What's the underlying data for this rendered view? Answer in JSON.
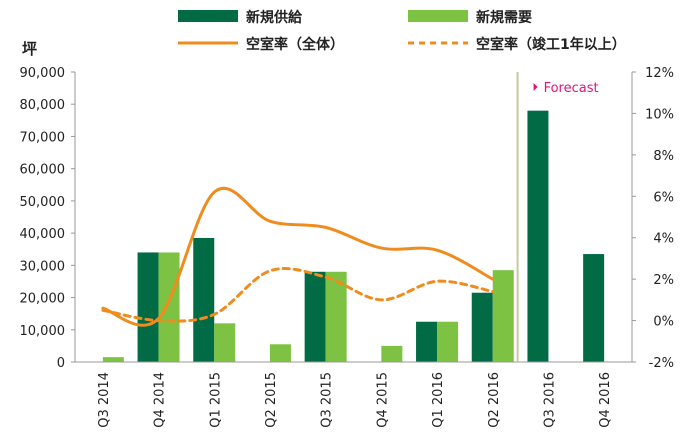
{
  "chart_data": {
    "type": "bar",
    "categories": [
      "Q3 2014",
      "Q4 2014",
      "Q1 2015",
      "Q2 2015",
      "Q3 2015",
      "Q4 2015",
      "Q1 2016",
      "Q2 2016",
      "Q3 2016",
      "Q4 2016"
    ],
    "series": [
      {
        "name": "新規供給",
        "kind": "bar",
        "axis": "left",
        "color": "#006b45",
        "values": [
          null,
          34000,
          38500,
          null,
          28000,
          null,
          12500,
          21500,
          78000,
          33500
        ]
      },
      {
        "name": "新規需要",
        "kind": "bar",
        "axis": "left",
        "color": "#7dc242",
        "values": [
          1500,
          34000,
          12000,
          5500,
          28000,
          5000,
          12500,
          28500,
          null,
          null
        ]
      },
      {
        "name": "空室率（全体）",
        "kind": "line",
        "axis": "right",
        "color": "#f08c1e",
        "values": [
          0.6,
          0.1,
          6.2,
          4.8,
          4.5,
          3.5,
          3.4,
          2.0,
          null,
          null
        ]
      },
      {
        "name": "空室率（竣工1年以上）",
        "kind": "line-dashed",
        "axis": "right",
        "color": "#f08c1e",
        "values": [
          0.5,
          0.0,
          0.3,
          2.4,
          2.1,
          1.0,
          1.9,
          1.4,
          null,
          null
        ]
      }
    ],
    "y_left": {
      "label": "坪",
      "min": 0,
      "max": 90000,
      "ticks": [
        "0",
        "10,000",
        "20,000",
        "30,000",
        "40,000",
        "50,000",
        "60,000",
        "70,000",
        "80,000",
        "90,000"
      ]
    },
    "y_right": {
      "min": -2,
      "max": 12,
      "ticks": [
        "-2%",
        "0%",
        "2%",
        "4%",
        "6%",
        "8%",
        "10%",
        "12%"
      ]
    },
    "forecast_label": "Forecast",
    "forecast_start_index": 8,
    "forecast_line_color": "#c8c8a0",
    "forecast_text_color": "#e0137b",
    "grid": false,
    "legend_position": "top"
  }
}
